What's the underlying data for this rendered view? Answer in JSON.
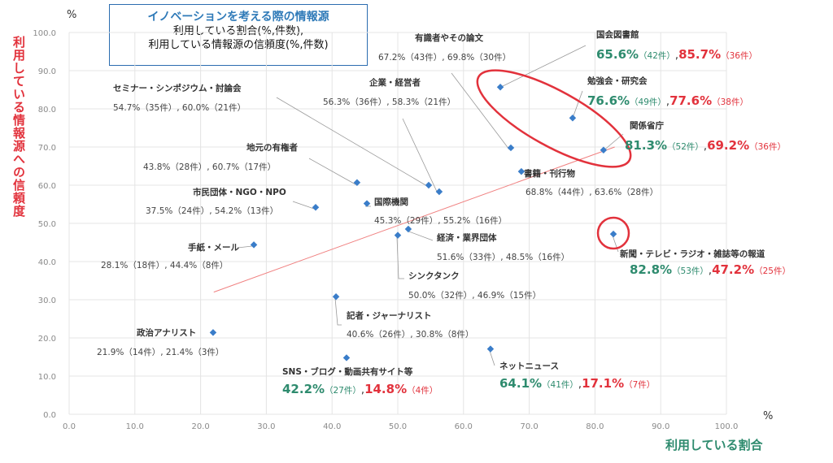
{
  "title_box": {
    "line1": "イノベーションを考える際の情報源",
    "line2": "利用している割合(%,件数),",
    "line3": "利用している情報源の信頼度(%,件数)"
  },
  "y_axis_title": "利用している情報源への信頼度",
  "x_axis_title": "利用している割合",
  "y_unit": "%",
  "x_unit": "%",
  "colors": {
    "point": "#3a7dc9",
    "trend": "#f08080",
    "highlight_green": "#2e8b6e",
    "highlight_red": "#e2323c",
    "ellipse": "#e2323c"
  },
  "chart_data": {
    "type": "scatter",
    "xlim": [
      0,
      100
    ],
    "ylim": [
      0,
      100
    ],
    "x_ticks": [
      "0.0",
      "10.0",
      "20.0",
      "30.0",
      "40.0",
      "50.0",
      "60.0",
      "70.0",
      "80.0",
      "90.0",
      "100.0"
    ],
    "y_ticks": [
      "0.0",
      "10.0",
      "20.0",
      "30.0",
      "40.0",
      "50.0",
      "60.0",
      "70.0",
      "80.0",
      "90.0",
      "100.0"
    ],
    "grid": true,
    "trendline": true,
    "points": [
      {
        "name": "国会図書館",
        "x": 65.6,
        "y": 85.7,
        "label": "65.6%（42件）,85.7%（36件）",
        "highlight": true,
        "gx": "65.6%",
        "gc": "（42件）",
        "rx": "85.7%",
        "rc": "（36件）"
      },
      {
        "name": "勉強会・研究会",
        "x": 76.6,
        "y": 77.6,
        "label": "76.6%（49件）,77.6%（38件）",
        "highlight": true,
        "gx": "76.6%",
        "gc": "（49件）",
        "rx": "77.6%",
        "rc": "（38件）"
      },
      {
        "name": "関係省庁",
        "x": 81.3,
        "y": 69.2,
        "label": "81.3%（52件）,69.2%（36件）",
        "highlight": true,
        "gx": "81.3%",
        "gc": "（52件）",
        "rx": "69.2%",
        "rc": "（36件）"
      },
      {
        "name": "新聞・テレビ・ラジオ・雑誌等の報道",
        "x": 82.8,
        "y": 47.2,
        "label": "82.8%（53件）,47.2%（25件）",
        "highlight": true,
        "gx": "82.8%",
        "gc": "（53件）",
        "rx": "47.2%",
        "rc": "（25件）"
      },
      {
        "name": "SNS・ブログ・動画共有サイト等",
        "x": 42.2,
        "y": 14.8,
        "label": "42.2%（27件）,14.8%（4件）",
        "highlight": true,
        "gx": "42.2%",
        "gc": "（27件）",
        "rx": "14.8%",
        "rc": "（4件）"
      },
      {
        "name": "ネットニュース",
        "x": 64.1,
        "y": 17.1,
        "label": "64.1%（41件）,17.1%（7件）",
        "highlight": true,
        "gx": "64.1%",
        "gc": "（41件）",
        "rx": "17.1%",
        "rc": "（7件）"
      },
      {
        "name": "有識者やその論文",
        "x": 67.2,
        "y": 69.8,
        "label": "67.2%（43件）, 69.8%（30件）",
        "highlight": false
      },
      {
        "name": "企業・経営者",
        "x": 56.3,
        "y": 58.3,
        "label": "56.3%（36件）, 58.3%（21件）",
        "highlight": false
      },
      {
        "name": "セミナー・シンポジウム・討論会",
        "x": 54.7,
        "y": 60.0,
        "label": "54.7%（35件）, 60.0%（21件）",
        "highlight": false
      },
      {
        "name": "書籍・刊行物",
        "x": 68.8,
        "y": 63.6,
        "label": "68.8%（44件）, 63.6%（28件）",
        "highlight": false
      },
      {
        "name": "地元の有権者",
        "x": 43.8,
        "y": 60.7,
        "label": "43.8%（28件）, 60.7%（17件）",
        "highlight": false
      },
      {
        "name": "国際機関",
        "x": 45.3,
        "y": 55.2,
        "label": "45.3%（29件）, 55.2%（16件）",
        "highlight": false
      },
      {
        "name": "市民団体・NGO・NPO",
        "x": 37.5,
        "y": 54.2,
        "label": "37.5%（24件）, 54.2%（13件）",
        "highlight": false
      },
      {
        "name": "経済・業界団体",
        "x": 51.6,
        "y": 48.5,
        "label": "51.6%（33件）, 48.5%（16件）",
        "highlight": false
      },
      {
        "name": "シンクタンク",
        "x": 50.0,
        "y": 46.9,
        "label": "50.0%（32件）, 46.9%（15件）",
        "highlight": false
      },
      {
        "name": "手紙・メール",
        "x": 28.1,
        "y": 44.4,
        "label": "28.1%（18件）, 44.4%（8件）",
        "highlight": false
      },
      {
        "name": "記者・ジャーナリスト",
        "x": 40.6,
        "y": 30.8,
        "label": "40.6%（26件）, 30.8%（8件）",
        "highlight": false
      },
      {
        "name": "政治アナリスト",
        "x": 21.9,
        "y": 21.4,
        "label": "21.9%（14件）, 21.4%（3件）",
        "highlight": false
      }
    ],
    "trendline_points": [
      [
        22,
        32
      ],
      [
        83,
        70
      ]
    ]
  }
}
